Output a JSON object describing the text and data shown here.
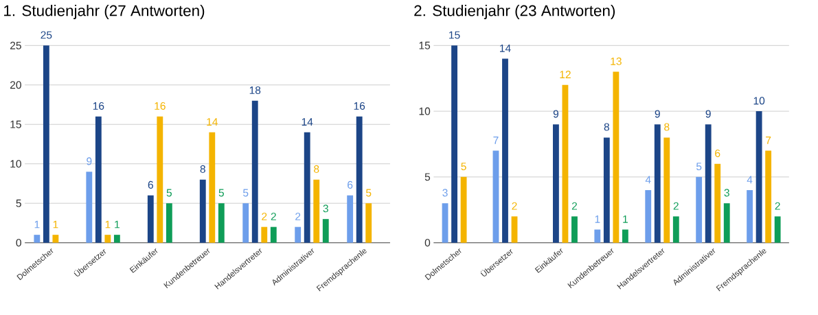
{
  "chart_data": [
    {
      "type": "bar",
      "title": "1. Studienjahr (27 Antworten)",
      "categories": [
        "Dolmetscher",
        "Übersetzer",
        "Einkäufer",
        "Kundenbetreuer",
        "Handelsvertreter",
        "Administrativer",
        "Fremdsprachenle"
      ],
      "series": [
        {
          "color": "#6d9eeb",
          "values": [
            1,
            9,
            null,
            null,
            5,
            2,
            6
          ]
        },
        {
          "color": "#1c4587",
          "values": [
            25,
            16,
            6,
            8,
            18,
            14,
            16
          ]
        },
        {
          "color": "#f4b400",
          "values": [
            1,
            1,
            16,
            14,
            2,
            8,
            5
          ]
        },
        {
          "color": "#0f9d58",
          "values": [
            null,
            1,
            5,
            5,
            2,
            3,
            null
          ]
        }
      ],
      "ylim": [
        0,
        25
      ],
      "yticks": [
        0,
        5,
        10,
        15,
        20,
        25
      ],
      "grid": "y",
      "data_labels": true
    },
    {
      "type": "bar",
      "title": "2. Studienjahr (23 Antworten)",
      "categories": [
        "Dolmetscher",
        "Übersetzer",
        "Einkäufer",
        "Kundenbetreuer",
        "Handelsvertreter",
        "Administrativer",
        "Fremdsprachenle"
      ],
      "series": [
        {
          "color": "#6d9eeb",
          "values": [
            3,
            7,
            null,
            1,
            4,
            5,
            4
          ]
        },
        {
          "color": "#1c4587",
          "values": [
            15,
            14,
            9,
            8,
            9,
            9,
            10
          ]
        },
        {
          "color": "#f4b400",
          "values": [
            5,
            2,
            12,
            13,
            8,
            6,
            7
          ]
        },
        {
          "color": "#0f9d58",
          "values": [
            null,
            null,
            2,
            1,
            2,
            3,
            2
          ]
        }
      ],
      "ylim": [
        0,
        15
      ],
      "yticks": [
        0,
        5,
        10,
        15
      ],
      "grid": "y",
      "data_labels": true
    }
  ]
}
